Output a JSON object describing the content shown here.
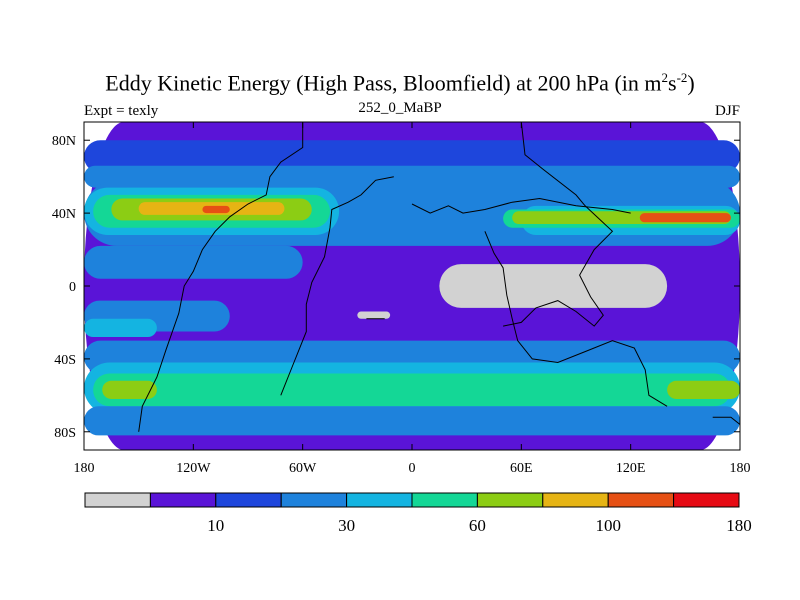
{
  "title": {
    "main": "Eddy Kinetic Energy (High Pass, Bloomfield) at 200 hPa (in m",
    "sup1": "2",
    "mid": "s",
    "sup2": "-2",
    "end": ")"
  },
  "subtitle": "252_0_MaBP",
  "left_label": "Expt = texly",
  "right_label": "DJF",
  "colors": {
    "levels": [
      "#d2d2d2",
      "#5a14d7",
      "#1e46dc",
      "#1e82dc",
      "#14b4e1",
      "#14d796",
      "#8ccd14",
      "#e6b414",
      "#e65014",
      "#e60a14"
    ],
    "frame": "#000000"
  },
  "chart_data": {
    "type": "heatmap",
    "title": "Eddy Kinetic Energy (High Pass, Bloomfield) at 200 hPa (in m2s-2)",
    "subtitle": "252_0_MaBP",
    "xlim": [
      -180,
      180
    ],
    "ylim": [
      -90,
      90
    ],
    "x_ticks": [
      {
        "value": -180,
        "label": "180"
      },
      {
        "value": -120,
        "label": "120W"
      },
      {
        "value": -60,
        "label": "60W"
      },
      {
        "value": 0,
        "label": "0"
      },
      {
        "value": 60,
        "label": "60E"
      },
      {
        "value": 120,
        "label": "120E"
      },
      {
        "value": 180,
        "label": "180"
      }
    ],
    "y_ticks": [
      {
        "value": 80,
        "label": "80N"
      },
      {
        "value": 40,
        "label": "40N"
      },
      {
        "value": 0,
        "label": "0"
      },
      {
        "value": -40,
        "label": "40S"
      },
      {
        "value": -80,
        "label": "80S"
      }
    ],
    "colorbar": {
      "labels": [
        {
          "index": 1,
          "text": "10"
        },
        {
          "index": 3,
          "text": "30"
        },
        {
          "index": 5,
          "text": "60"
        },
        {
          "index": 7,
          "text": "100"
        },
        {
          "index": 9,
          "text": "180"
        }
      ]
    },
    "fields": [
      {
        "level": 1,
        "band": [
          -90,
          90
        ]
      },
      {
        "level": 2,
        "band": [
          62,
          80
        ]
      },
      {
        "level": 3,
        "band": [
          54,
          66
        ]
      },
      {
        "level": 3,
        "band": [
          22,
          58
        ],
        "lon": [
          -180,
          180
        ]
      },
      {
        "level": 4,
        "band": [
          28,
          54
        ],
        "lon": [
          -180,
          -40
        ]
      },
      {
        "level": 5,
        "band": [
          32,
          50
        ],
        "lon": [
          -175,
          -45
        ]
      },
      {
        "level": 6,
        "band": [
          36,
          48
        ],
        "lon": [
          -165,
          -55
        ]
      },
      {
        "level": 7,
        "band": [
          39,
          46
        ],
        "lon": [
          -150,
          -70
        ]
      },
      {
        "level": 8,
        "band": [
          40,
          44
        ],
        "lon": [
          -115,
          -100
        ]
      },
      {
        "level": 4,
        "band": [
          28,
          44
        ],
        "lon": [
          60,
          180
        ]
      },
      {
        "level": 5,
        "band": [
          32,
          42
        ],
        "lon": [
          50,
          180
        ]
      },
      {
        "level": 6,
        "band": [
          34,
          41
        ],
        "lon": [
          55,
          175
        ]
      },
      {
        "level": 8,
        "band": [
          35,
          40
        ],
        "lon": [
          125,
          175
        ]
      },
      {
        "level": 3,
        "band": [
          4,
          22
        ],
        "lon": [
          -180,
          -60
        ]
      },
      {
        "level": 3,
        "band": [
          -25,
          -8
        ],
        "lon": [
          -180,
          -100
        ]
      },
      {
        "level": 4,
        "band": [
          -28,
          -18
        ],
        "lon": [
          -180,
          -140
        ]
      },
      {
        "level": 3,
        "band": [
          -48,
          -30
        ],
        "lon": [
          -180,
          180
        ]
      },
      {
        "level": 4,
        "band": [
          -70,
          -42
        ],
        "lon": [
          -180,
          180
        ]
      },
      {
        "level": 5,
        "band": [
          -66,
          -48
        ],
        "lon": [
          -175,
          175
        ]
      },
      {
        "level": 6,
        "band": [
          -62,
          -52
        ],
        "lon": [
          -170,
          -140
        ]
      },
      {
        "level": 6,
        "band": [
          -62,
          -52
        ],
        "lon": [
          140,
          180
        ]
      },
      {
        "level": 3,
        "band": [
          -82,
          -66
        ],
        "lon": [
          -180,
          180
        ]
      },
      {
        "level": 0,
        "band": [
          -12,
          12
        ],
        "lon": [
          15,
          140
        ],
        "shape": "blob"
      },
      {
        "level": 0,
        "band": [
          -18,
          -14
        ],
        "lon": [
          -30,
          -12
        ],
        "shape": "blob"
      }
    ]
  }
}
